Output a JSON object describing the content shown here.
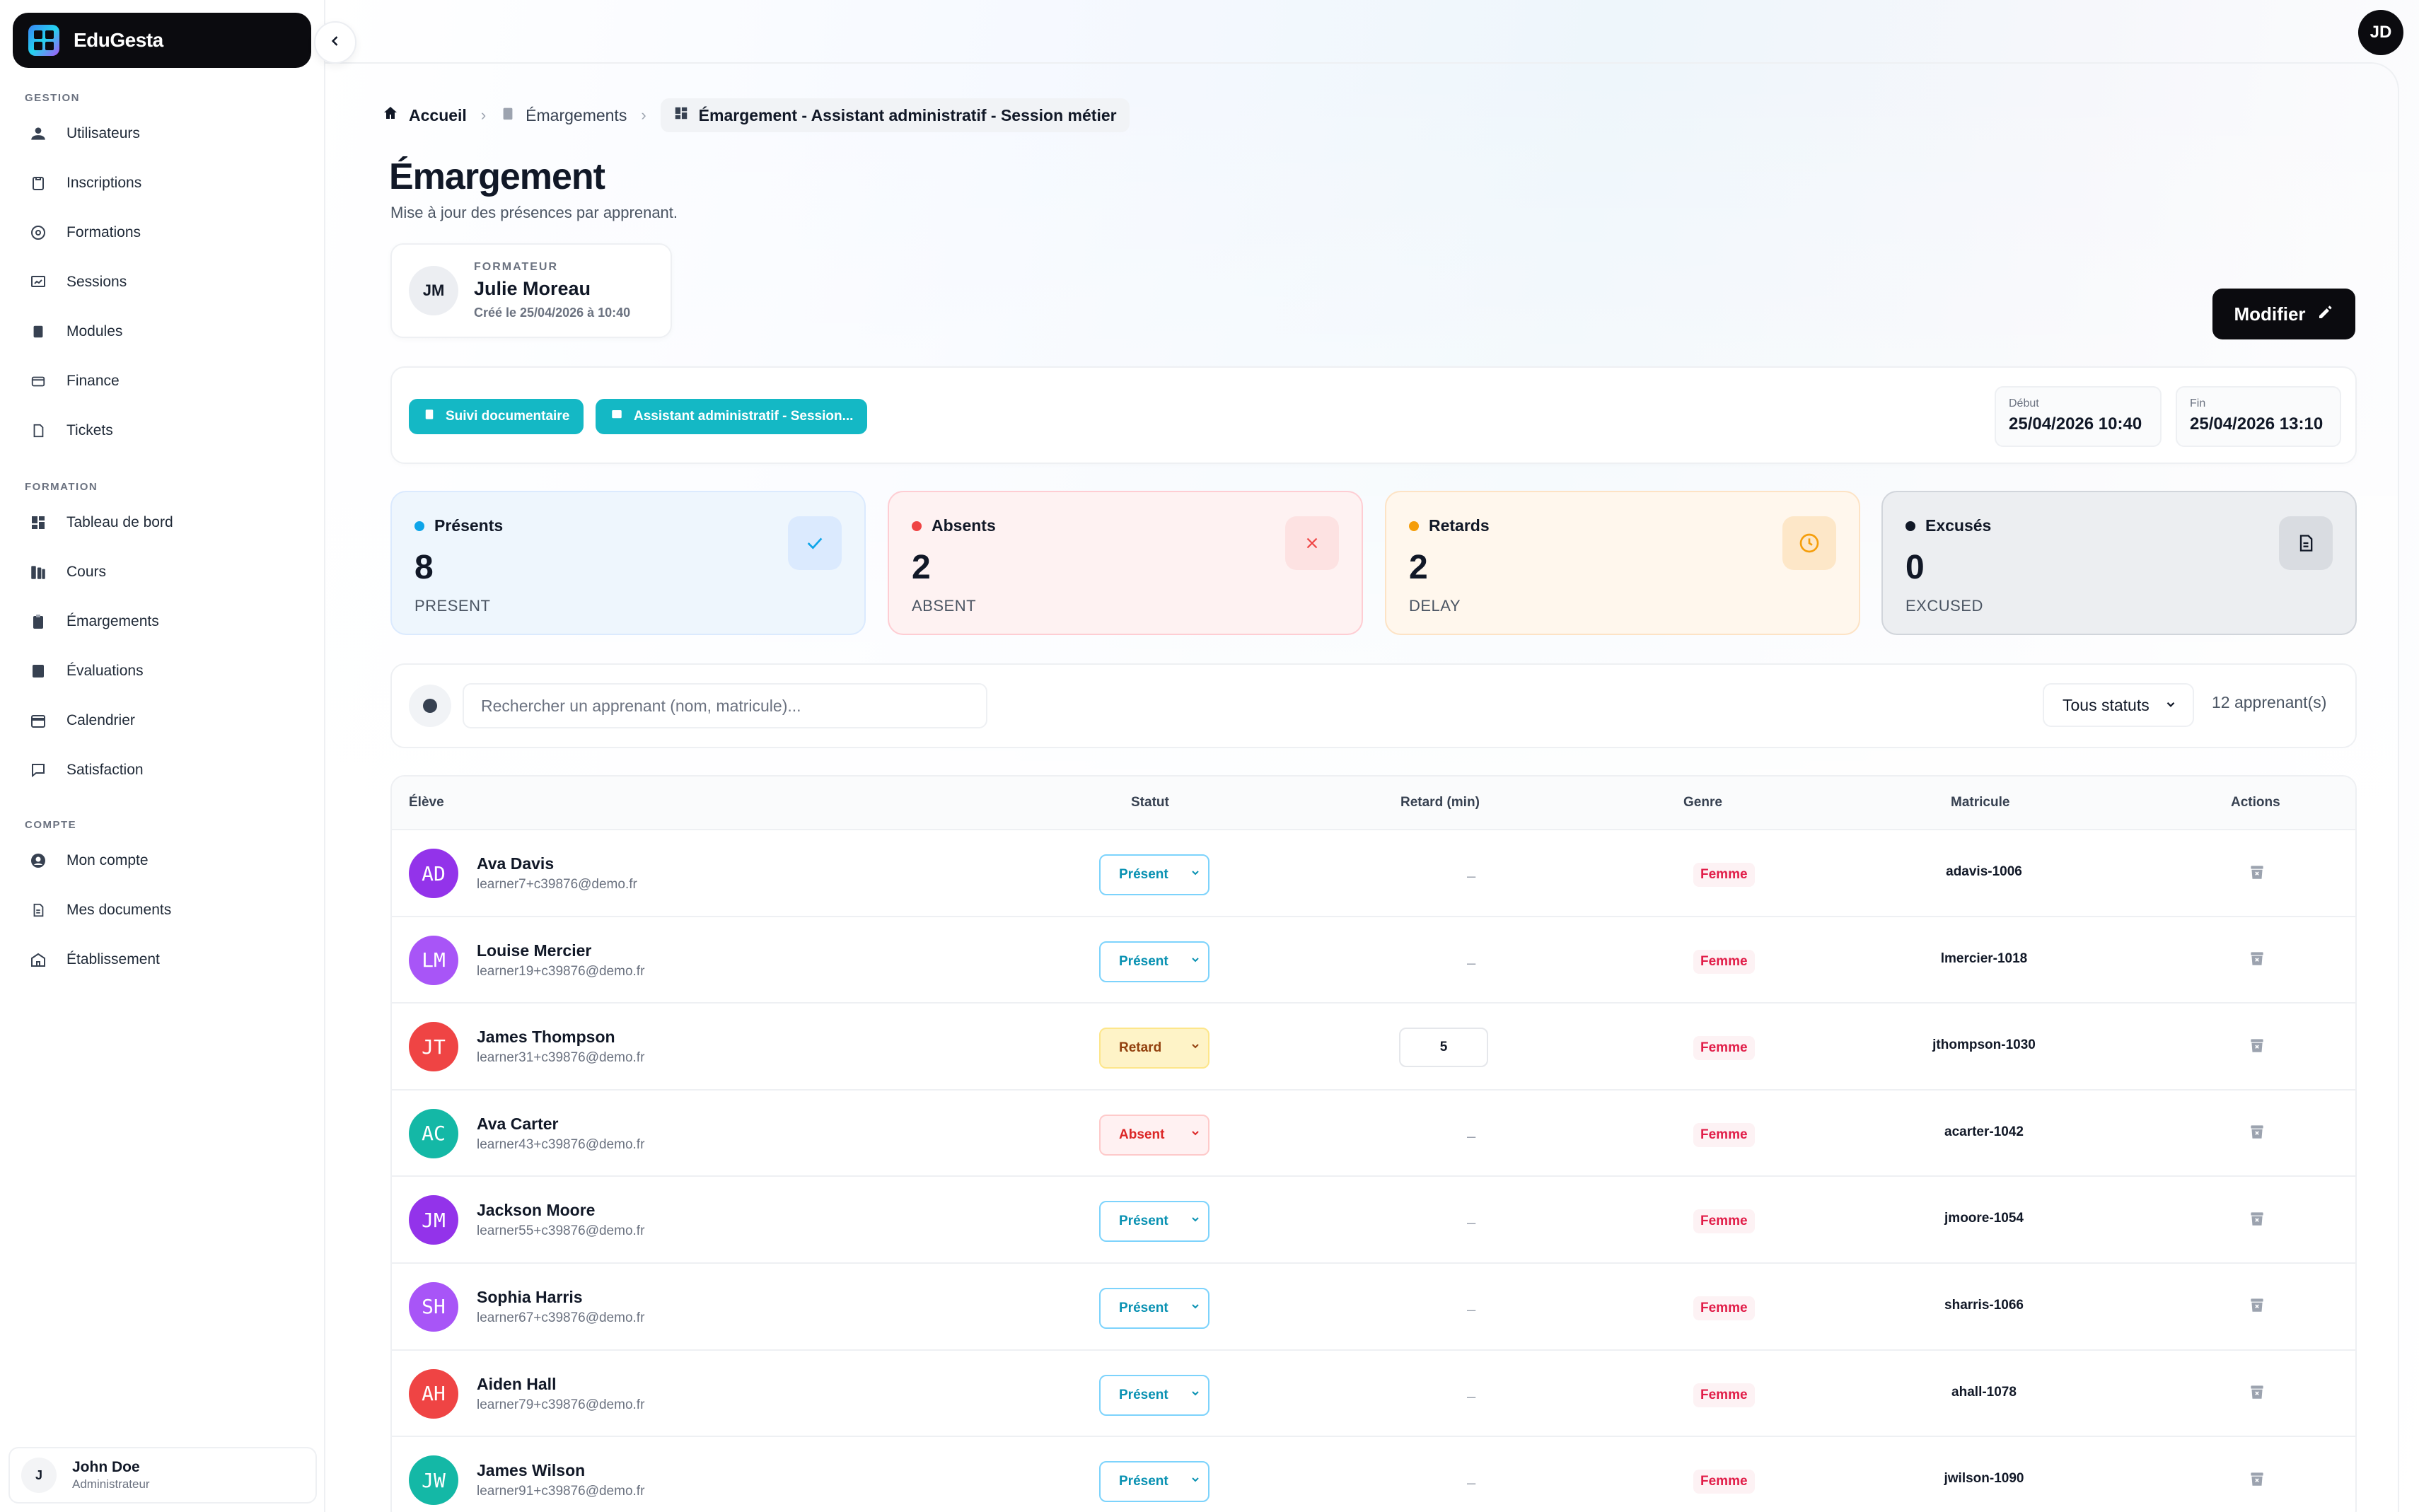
{
  "app": {
    "name": "EduGesta"
  },
  "sidebar": {
    "sections": [
      {
        "label": "GESTION"
      },
      {
        "label": "FORMATION"
      },
      {
        "label": "COMPTE"
      }
    ],
    "items": [
      {
        "label": "Utilisateurs",
        "icon": "users-icon"
      },
      {
        "label": "Inscriptions",
        "icon": "clipboard-icon"
      },
      {
        "label": "Formations",
        "icon": "target-icon"
      },
      {
        "label": "Sessions",
        "icon": "presentation-icon"
      },
      {
        "label": "Modules",
        "icon": "book-icon"
      },
      {
        "label": "Finance",
        "icon": "wallet-icon"
      },
      {
        "label": "Tickets",
        "icon": "ticket-icon"
      },
      {
        "label": "Tableau de bord",
        "icon": "dashboard-icon"
      },
      {
        "label": "Cours",
        "icon": "books-icon"
      },
      {
        "label": "Émargements",
        "icon": "clipboard-check-icon"
      },
      {
        "label": "Évaluations",
        "icon": "evaluation-icon"
      },
      {
        "label": "Calendrier",
        "icon": "calendar-icon"
      },
      {
        "label": "Satisfaction",
        "icon": "chat-icon"
      },
      {
        "label": "Mon compte",
        "icon": "account-icon"
      },
      {
        "label": "Mes documents",
        "icon": "document-icon"
      },
      {
        "label": "Établissement",
        "icon": "building-icon"
      }
    ],
    "user": {
      "initial": "J",
      "name": "John Doe",
      "role": "Administrateur"
    }
  },
  "header": {
    "avatar_initials": "JD"
  },
  "breadcrumb": {
    "home": "Accueil",
    "parent": "Émargements",
    "current": "Émargement - Assistant administratif - Session métier"
  },
  "page": {
    "title": "Émargement",
    "subtitle": "Mise à jour des présences par apprenant."
  },
  "trainer": {
    "initials": "JM",
    "label": "FORMATEUR",
    "name": "Julie Moreau",
    "created": "Créé le 25/04/2026 à 10:40"
  },
  "edit_button": {
    "label": "Modifier"
  },
  "info": {
    "tags": [
      "Suivi documentaire",
      "Assistant administratif - Session..."
    ],
    "start": {
      "label": "Début",
      "value": "25/04/2026 10:40"
    },
    "end": {
      "label": "Fin",
      "value": "25/04/2026 13:10"
    }
  },
  "stats": [
    {
      "title": "Présents",
      "value": "8",
      "sub": "PRESENT",
      "color": "#0ea5e9",
      "icon": "check-icon"
    },
    {
      "title": "Absents",
      "value": "2",
      "sub": "ABSENT",
      "color": "#ef4444",
      "icon": "close-icon"
    },
    {
      "title": "Retards",
      "value": "2",
      "sub": "DELAY",
      "color": "#f59e0b",
      "icon": "clock-icon"
    },
    {
      "title": "Excusés",
      "value": "0",
      "sub": "EXCUSED",
      "color": "#111827",
      "icon": "file-icon"
    }
  ],
  "filters": {
    "search_placeholder": "Rechercher un apprenant (nom, matricule)...",
    "status_value": "Tous statuts",
    "count": "12 apprenant(s)"
  },
  "table": {
    "headers": [
      "Élève",
      "Statut",
      "Retard (min)",
      "Genre",
      "Matricule",
      "Actions"
    ],
    "rows": [
      {
        "initials": "AD",
        "name": "Ava Davis",
        "email": "learner7+c39876@demo.fr",
        "status": "Présent",
        "delay": "–",
        "gender": "Femme",
        "matricule": "adavis-1006",
        "avatar_color": "#9333ea"
      },
      {
        "initials": "LM",
        "name": "Louise Mercier",
        "email": "learner19+c39876@demo.fr",
        "status": "Présent",
        "delay": "–",
        "gender": "Femme",
        "matricule": "lmercier-1018",
        "avatar_color": "#a855f7"
      },
      {
        "initials": "JT",
        "name": "James Thompson",
        "email": "learner31+c39876@demo.fr",
        "status": "Retard",
        "delay": "5",
        "gender": "Femme",
        "matricule": "jthompson-1030",
        "avatar_color": "#ef4444"
      },
      {
        "initials": "AC",
        "name": "Ava Carter",
        "email": "learner43+c39876@demo.fr",
        "status": "Absent",
        "delay": "–",
        "gender": "Femme",
        "matricule": "acarter-1042",
        "avatar_color": "#14b8a6"
      },
      {
        "initials": "JM",
        "name": "Jackson Moore",
        "email": "learner55+c39876@demo.fr",
        "status": "Présent",
        "delay": "–",
        "gender": "Femme",
        "matricule": "jmoore-1054",
        "avatar_color": "#9333ea"
      },
      {
        "initials": "SH",
        "name": "Sophia Harris",
        "email": "learner67+c39876@demo.fr",
        "status": "Présent",
        "delay": "–",
        "gender": "Femme",
        "matricule": "sharris-1066",
        "avatar_color": "#a855f7"
      },
      {
        "initials": "AH",
        "name": "Aiden Hall",
        "email": "learner79+c39876@demo.fr",
        "status": "Présent",
        "delay": "–",
        "gender": "Femme",
        "matricule": "ahall-1078",
        "avatar_color": "#ef4444"
      },
      {
        "initials": "JW",
        "name": "James Wilson",
        "email": "learner91+c39876@demo.fr",
        "status": "Présent",
        "delay": "–",
        "gender": "Femme",
        "matricule": "jwilson-1090",
        "avatar_color": "#14b8a6"
      }
    ]
  }
}
